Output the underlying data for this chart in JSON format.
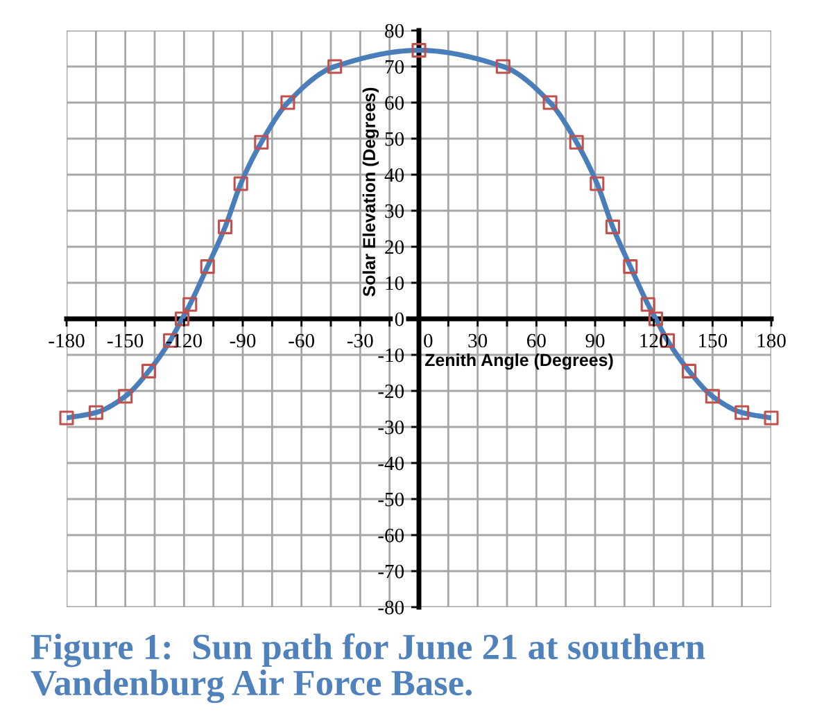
{
  "chart_data": {
    "type": "line",
    "title": "Figure 1:  Sun path for June 21 at southern Vandenburg Air Force Base.",
    "xlabel": "Zenith Angle (Degrees)",
    "ylabel": "Solar Elevation (Degrees)",
    "series": [
      {
        "color": "#4a7ebb",
        "marker": "none",
        "x": [
          -180,
          -165,
          -150,
          -138,
          -127,
          -121,
          -117,
          -108,
          -99,
          -91,
          -80.5,
          -67,
          -43,
          0,
          43,
          67,
          80.5,
          91,
          99,
          108,
          117,
          121,
          127,
          138,
          150,
          165,
          180
        ],
        "values": [
          -27.5,
          -26,
          -21.5,
          -14.5,
          -6,
          0,
          4,
          14.5,
          25.5,
          37.5,
          49,
          60,
          70,
          74.5,
          70,
          60,
          49,
          37.5,
          25.5,
          14.5,
          4,
          0,
          -6,
          -14.5,
          -21.5,
          -26,
          -27.5
        ]
      },
      {
        "type": "scatter",
        "color": "#c0504d",
        "marker": "square",
        "x": [
          -180,
          -165,
          -150,
          -138,
          -127,
          -121,
          -117,
          -108,
          -99,
          -91,
          -80.5,
          -67,
          -43,
          0,
          43,
          67,
          80.5,
          91,
          99,
          108,
          117,
          121,
          127,
          138,
          150,
          165,
          180
        ],
        "values": [
          -27.5,
          -26,
          -21.5,
          -14.5,
          -6,
          0,
          4,
          14.5,
          25.5,
          37.5,
          49,
          60,
          70,
          74.5,
          70,
          60,
          49,
          37.5,
          25.5,
          14.5,
          4,
          0,
          -6,
          -14.5,
          -21.5,
          -26,
          -27.5
        ]
      }
    ],
    "xlim": [
      -180,
      180
    ],
    "xticks": [
      -180,
      {
        "value": -165,
        "label": null
      },
      -150,
      {
        "value": -135,
        "label": null
      },
      -120,
      {
        "value": -105,
        "label": null
      },
      -90,
      {
        "value": -75,
        "label": null
      },
      -60,
      {
        "value": -45,
        "label": null
      },
      -30,
      {
        "value": -15,
        "label": null
      },
      0,
      {
        "value": 15,
        "label": null
      },
      30,
      {
        "value": 45,
        "label": null
      },
      60,
      {
        "value": 75,
        "label": null
      },
      90,
      {
        "value": 105,
        "label": null
      },
      120,
      {
        "value": 135,
        "label": null
      },
      150,
      {
        "value": 165,
        "label": null
      },
      180
    ],
    "ylim": [
      -80,
      80
    ],
    "yticks": [
      -80,
      -70,
      -60,
      -50,
      -40,
      -30,
      -20,
      -10,
      0,
      10,
      20,
      30,
      40,
      50,
      60,
      70,
      80
    ],
    "grid": true,
    "legend": false
  }
}
